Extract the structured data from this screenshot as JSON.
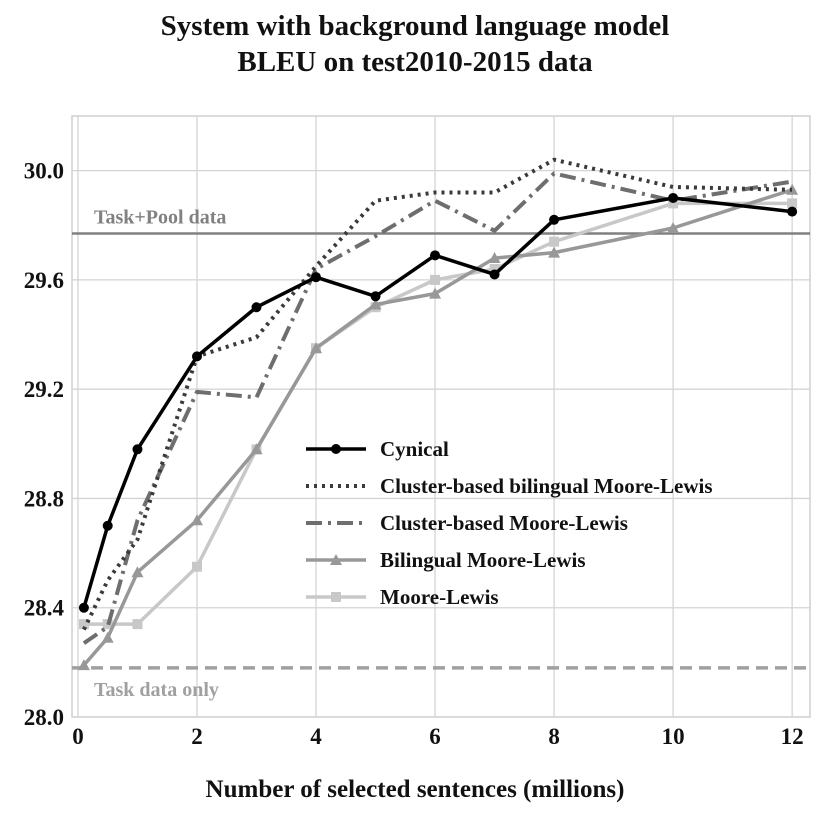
{
  "chart_data": {
    "type": "line",
    "title_lines": [
      "System with background language model",
      "BLEU on test2010-2015 data"
    ],
    "xlabel": "Number of selected sentences (millions)",
    "ylabel": "",
    "xlim": [
      -0.1,
      12.3
    ],
    "ylim": [
      28.0,
      30.2
    ],
    "xticks": [
      0,
      2,
      4,
      6,
      8,
      10,
      12
    ],
    "xtick_labels": [
      "0",
      "2",
      "4",
      "6",
      "8",
      "10",
      "12"
    ],
    "yticks": [
      28.0,
      28.4,
      28.8,
      29.2,
      29.6,
      30.0
    ],
    "ytick_labels": [
      "28.0",
      "28.4",
      "28.8",
      "29.2",
      "29.6",
      "30.0"
    ],
    "grid": true,
    "legend_position": "center-right",
    "reference_lines": [
      {
        "label": "Task+Pool data",
        "y": 29.77,
        "color": "#808080",
        "style": "solid"
      },
      {
        "label": "Task data only",
        "y": 28.18,
        "color": "#a0a0a0",
        "style": "dashed"
      }
    ],
    "series": [
      {
        "name": "Cynical",
        "color": "#000000",
        "dash": "",
        "marker": "circle",
        "width": 3.5,
        "x": [
          0.1,
          0.5,
          1,
          2,
          3,
          4,
          5,
          6,
          7,
          8,
          10,
          12
        ],
        "y": [
          28.4,
          28.7,
          28.98,
          29.32,
          29.5,
          29.61,
          29.54,
          29.69,
          29.62,
          29.82,
          29.9,
          29.85
        ]
      },
      {
        "name": "Cluster-based bilingual Moore-Lewis",
        "color": "#3a3a3a",
        "dash": "3 5",
        "marker": "none",
        "width": 4,
        "x": [
          0.1,
          0.5,
          1,
          2,
          3,
          4,
          5,
          6,
          7,
          8,
          10,
          12
        ],
        "y": [
          28.32,
          28.5,
          28.65,
          29.32,
          29.39,
          29.65,
          29.89,
          29.92,
          29.92,
          30.04,
          29.94,
          29.93
        ]
      },
      {
        "name": "Cluster-based Moore-Lewis",
        "color": "#6e6e6e",
        "dash": "16 6 3 6",
        "marker": "none",
        "width": 4,
        "x": [
          0.1,
          0.5,
          1,
          2,
          3,
          4,
          5,
          6,
          7,
          8,
          10,
          12
        ],
        "y": [
          28.27,
          28.33,
          28.72,
          29.19,
          29.17,
          29.64,
          29.76,
          29.89,
          29.78,
          29.99,
          29.89,
          29.96
        ]
      },
      {
        "name": "Bilingual Moore-Lewis",
        "color": "#989898",
        "dash": "",
        "marker": "triangle",
        "width": 3.5,
        "x": [
          0.1,
          0.5,
          1,
          2,
          3,
          4,
          5,
          6,
          7,
          8,
          10,
          12
        ],
        "y": [
          28.19,
          28.29,
          28.53,
          28.72,
          28.98,
          29.35,
          29.51,
          29.55,
          29.68,
          29.7,
          29.79,
          29.93
        ]
      },
      {
        "name": "Moore-Lewis",
        "color": "#c8c8c8",
        "dash": "",
        "marker": "square",
        "width": 3.5,
        "x": [
          0.1,
          0.5,
          1,
          2,
          3,
          4,
          5,
          6,
          7,
          8,
          10,
          12
        ],
        "y": [
          28.34,
          28.34,
          28.34,
          28.55,
          28.98,
          29.35,
          29.5,
          29.6,
          29.64,
          29.74,
          29.88,
          29.88
        ]
      }
    ]
  }
}
